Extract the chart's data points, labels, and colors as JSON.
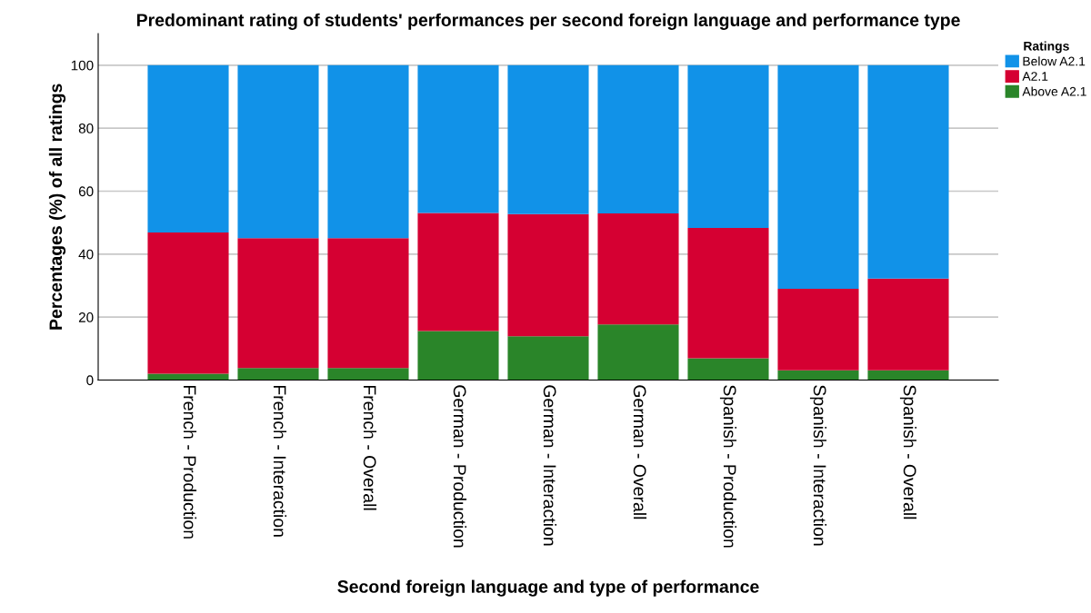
{
  "chart_data": {
    "type": "bar",
    "stacked": true,
    "title": "Predominant rating of students' performances per second foreign language and performance type",
    "xlabel": "Second foreign language and type of performance",
    "ylabel": "Percentages (%) of all ratings",
    "legend_title": "Ratings",
    "legend": "top right",
    "grid": "y",
    "categories": [
      "French - Production",
      "French - Interaction",
      "French - Overall",
      "German - Production",
      "German - Interaction",
      "German - Overall",
      "Spanish - Production",
      "Spanish - Interaction",
      "Spanish - Overall"
    ],
    "series": [
      {
        "name": "Above A2.1",
        "color": "#2a8529",
        "values": [
          2.0,
          3.8,
          3.8,
          15.6,
          13.9,
          17.7,
          6.9,
          3.1,
          3.1
        ]
      },
      {
        "name": "A2.1",
        "color": "#d50032",
        "values": [
          44.9,
          41.3,
          41.3,
          37.5,
          38.8,
          35.2,
          41.4,
          25.9,
          29.1
        ]
      },
      {
        "name": "Below A2.1",
        "color": "#1192e8",
        "values": [
          53.1,
          54.9,
          54.9,
          46.9,
          47.3,
          47.1,
          51.7,
          71.0,
          67.8
        ]
      }
    ],
    "ylim": [
      0,
      110
    ],
    "yticks": [
      0,
      20,
      40,
      60,
      80,
      100
    ]
  }
}
